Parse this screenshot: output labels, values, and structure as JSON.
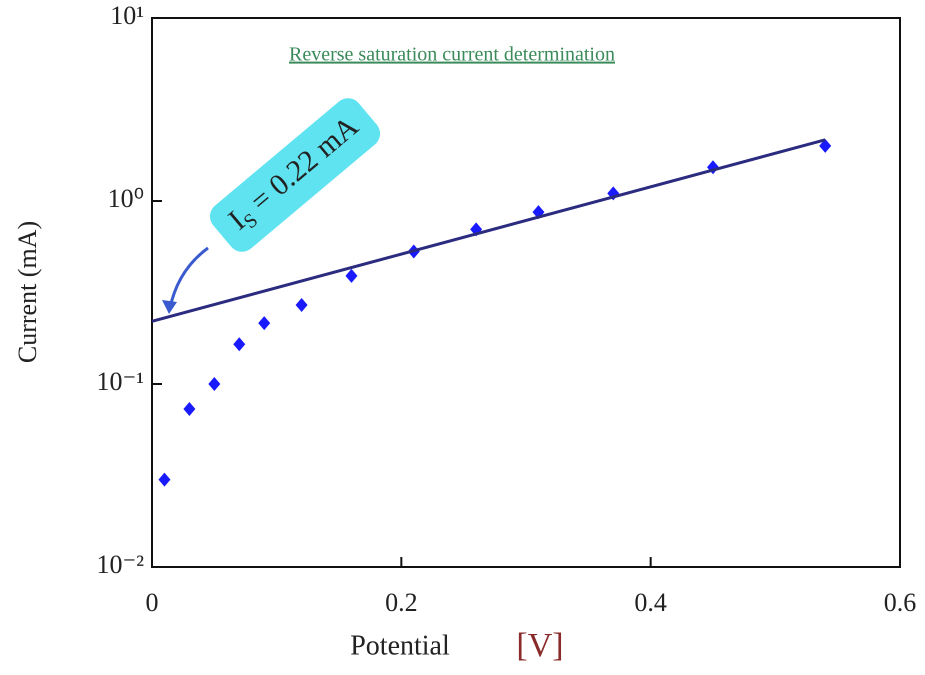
{
  "chart_data": {
    "type": "scatter",
    "title": "Reverse saturation current determination",
    "xlabel": "Potential",
    "xlabel_unit": "[V]",
    "ylabel": "Current  (mA)",
    "annotation": {
      "main": "I",
      "sub": "S",
      "rest": " = 0.22 mA"
    },
    "xlim": [
      0,
      0.6
    ],
    "xticks": [
      0,
      0.2,
      0.4,
      0.6
    ],
    "ylim": [
      0.01,
      10
    ],
    "log_y": true,
    "yticks": [
      {
        "value": 0.01,
        "label": "10⁻²"
      },
      {
        "value": 0.1,
        "label": "10⁻¹"
      },
      {
        "value": 1,
        "label": "10⁰"
      },
      {
        "value": 10,
        "label": "10¹"
      }
    ],
    "series": [
      {
        "kind": "scatter",
        "color": "#1a1aff",
        "x": [
          0.01,
          0.03,
          0.05,
          0.07,
          0.09,
          0.12,
          0.16,
          0.21,
          0.26,
          0.31,
          0.37,
          0.45,
          0.54
        ],
        "values": [
          0.03,
          0.073,
          0.1,
          0.165,
          0.215,
          0.27,
          0.39,
          0.53,
          0.7,
          0.87,
          1.1,
          1.53,
          2.0
        ]
      },
      {
        "kind": "line",
        "color": "#2b2b80",
        "x": [
          0,
          0.54
        ],
        "values": [
          0.22,
          2.16
        ]
      }
    ]
  }
}
